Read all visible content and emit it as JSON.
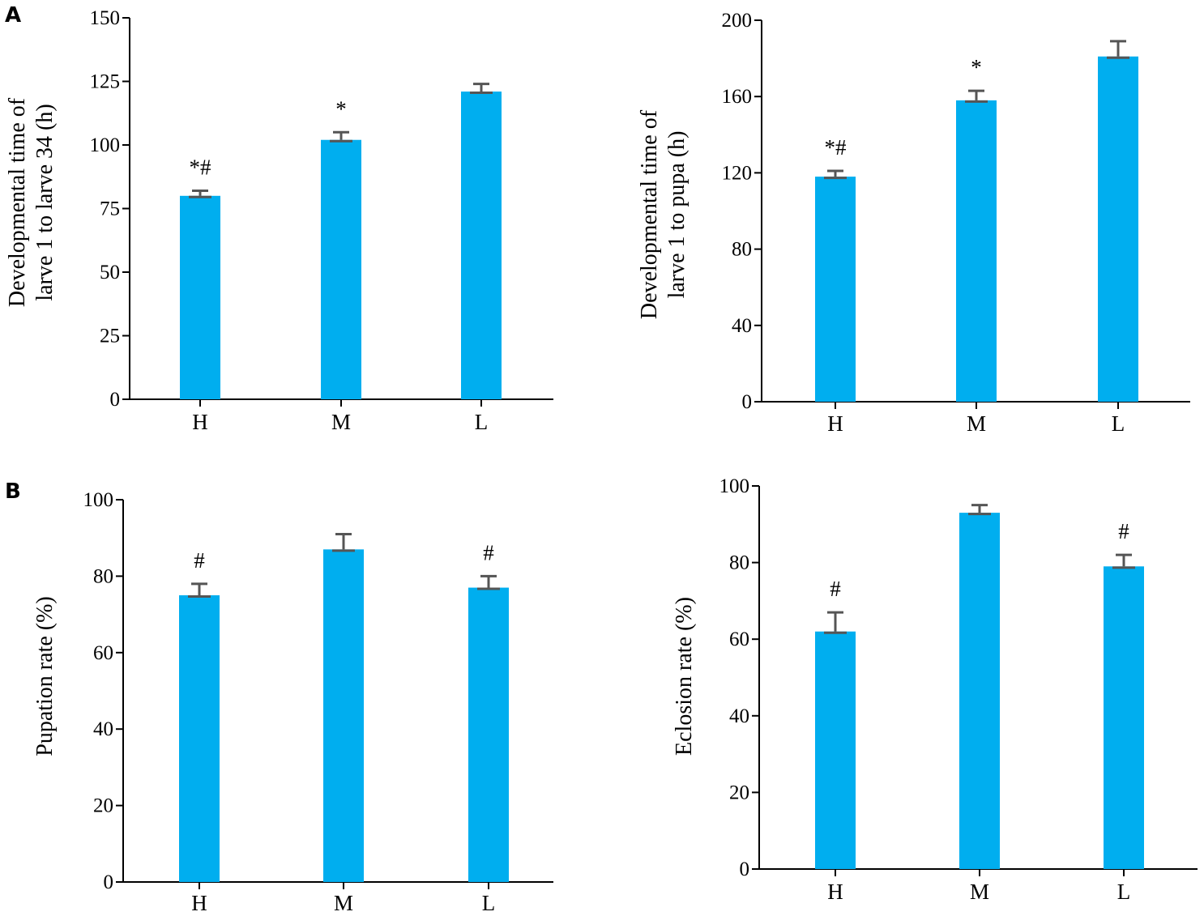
{
  "panel_labels": {
    "a": "A",
    "b": "B"
  },
  "colors": {
    "bar": "#00AEEF",
    "error_bar": "#555555",
    "axis": "#000000"
  },
  "chart_data": [
    {
      "type": "bar",
      "panel": "A",
      "title": "",
      "xlabel": "",
      "ylabel": [
        "Developmental time of",
        "larve 1 to larve 34 (h)"
      ],
      "categories": [
        "H",
        "M",
        "L"
      ],
      "values": [
        80,
        102,
        121
      ],
      "errors": [
        2,
        3,
        3
      ],
      "annotations": [
        "*#",
        "*",
        ""
      ],
      "ylim": [
        0,
        150
      ],
      "yticks": [
        0,
        25,
        50,
        75,
        100,
        125,
        150
      ],
      "grid": false
    },
    {
      "type": "bar",
      "panel": "A",
      "title": "",
      "xlabel": "",
      "ylabel": [
        "Developmental time of",
        "larve 1 to pupa (h)"
      ],
      "categories": [
        "H",
        "M",
        "L"
      ],
      "values": [
        118,
        158,
        181
      ],
      "errors": [
        3,
        5,
        8
      ],
      "annotations": [
        "*#",
        "*",
        ""
      ],
      "ylim": [
        0,
        200
      ],
      "yticks": [
        0,
        40,
        80,
        120,
        160,
        200
      ],
      "grid": false
    },
    {
      "type": "bar",
      "panel": "B",
      "title": "",
      "xlabel": "",
      "ylabel": [
        "Pupation rate (%)"
      ],
      "categories": [
        "H",
        "M",
        "L"
      ],
      "values": [
        75,
        87,
        77
      ],
      "errors": [
        3,
        4,
        3
      ],
      "annotations": [
        "#",
        "",
        "#"
      ],
      "ylim": [
        0,
        100
      ],
      "yticks": [
        0,
        20,
        40,
        60,
        80,
        100
      ],
      "grid": false
    },
    {
      "type": "bar",
      "panel": "B",
      "title": "",
      "xlabel": "",
      "ylabel": [
        "Eclosion rate (%)"
      ],
      "categories": [
        "H",
        "M",
        "L"
      ],
      "values": [
        62,
        93,
        79
      ],
      "errors": [
        5,
        2,
        3
      ],
      "annotations": [
        "#",
        "",
        "#"
      ],
      "ylim": [
        0,
        100
      ],
      "yticks": [
        0,
        20,
        40,
        60,
        80,
        100
      ],
      "grid": false
    }
  ]
}
